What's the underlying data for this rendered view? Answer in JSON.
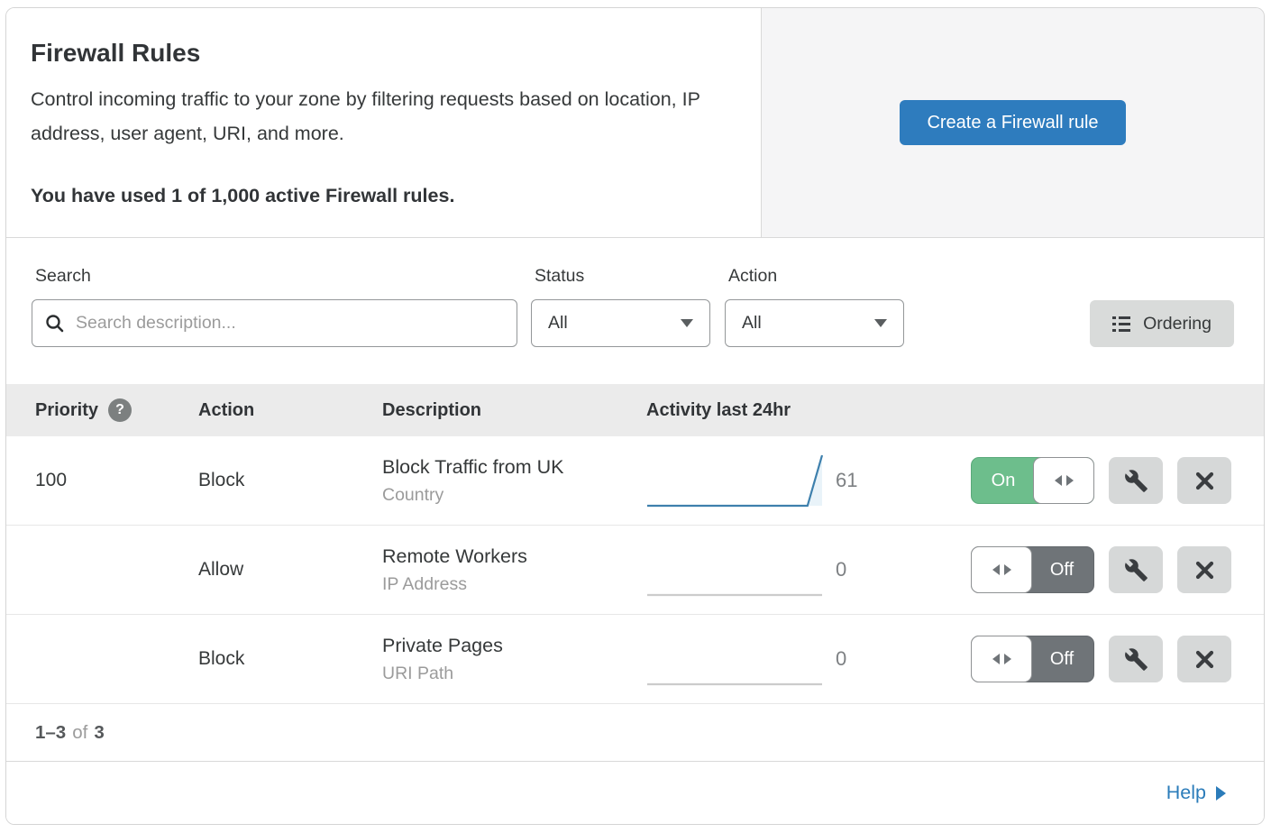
{
  "header": {
    "title": "Firewall Rules",
    "description": "Control incoming traffic to your zone by filtering requests based on location, IP address, user agent, URI, and more.",
    "usage_note": "You have used 1 of 1,000 active Firewall rules.",
    "create_button_label": "Create a Firewall rule"
  },
  "filters": {
    "search_label": "Search",
    "search_placeholder": "Search description...",
    "search_icon": "magnifier-icon",
    "status_label": "Status",
    "status_value": "All",
    "action_label": "Action",
    "action_value": "All",
    "ordering_button_label": "Ordering",
    "ordering_icon": "list-icon"
  },
  "table": {
    "columns": {
      "priority": "Priority",
      "priority_help_glyph": "?",
      "action": "Action",
      "description": "Description",
      "activity": "Activity last 24hr"
    },
    "rows": [
      {
        "priority": "100",
        "action": "Block",
        "description": "Block Traffic from UK",
        "match_type": "Country",
        "activity_count": "61",
        "toggle_label": "On",
        "enabled": true,
        "sparkline": [
          0,
          0,
          0,
          0,
          0,
          0,
          0,
          0,
          0,
          0,
          0,
          0,
          61
        ]
      },
      {
        "priority": "",
        "action": "Allow",
        "description": "Remote Workers",
        "match_type": "IP Address",
        "activity_count": "0",
        "toggle_label": "Off",
        "enabled": false,
        "sparkline": [
          0,
          0,
          0,
          0,
          0,
          0,
          0,
          0,
          0,
          0,
          0,
          0,
          0
        ]
      },
      {
        "priority": "",
        "action": "Block",
        "description": "Private Pages",
        "match_type": "URI Path",
        "activity_count": "0",
        "toggle_label": "Off",
        "enabled": false,
        "sparkline": [
          0,
          0,
          0,
          0,
          0,
          0,
          0,
          0,
          0,
          0,
          0,
          0,
          0
        ]
      }
    ]
  },
  "pagination": {
    "range": "1–3",
    "of_word": "of",
    "total": "3"
  },
  "help": {
    "label": "Help"
  },
  "colors": {
    "accent_blue": "#2e7cbe",
    "toggle_on_green": "#6dbe8c",
    "toggle_off_gray": "#6f7478",
    "sparkline_blue": "#3e80ad",
    "sparkline_fill": "#e9f3f9",
    "sparkline_flat_gray": "#cccccc",
    "help_link_blue": "#2b7cba"
  }
}
